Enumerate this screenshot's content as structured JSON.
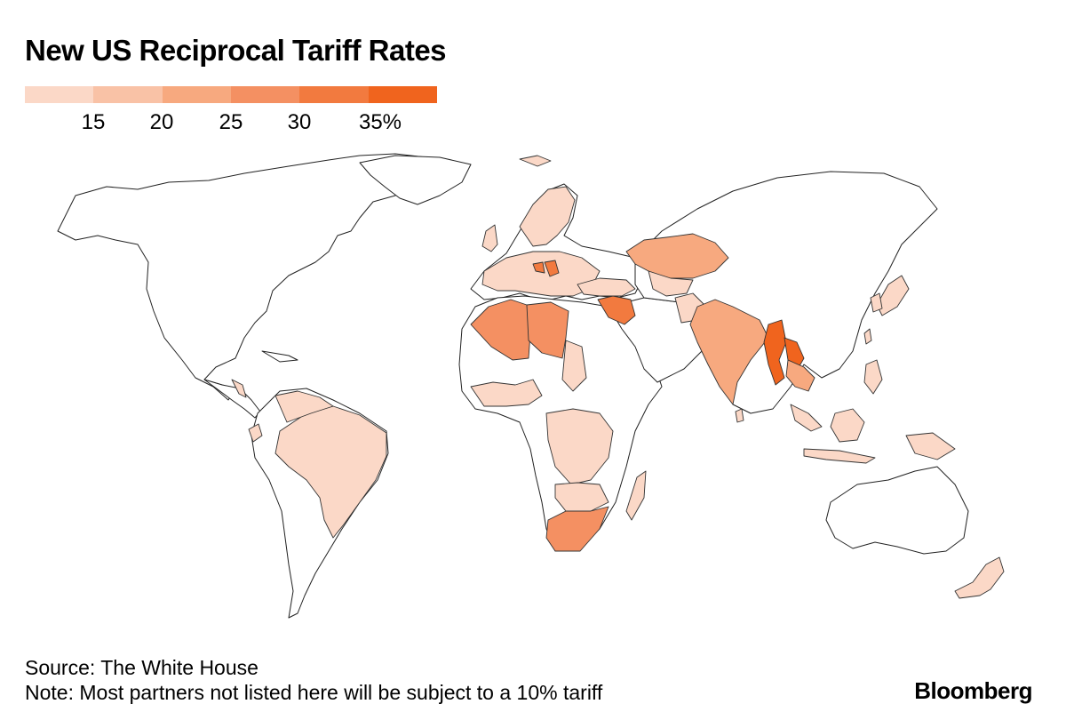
{
  "title": "New US Reciprocal Tariff Rates",
  "legend": {
    "colors": [
      "#fbd8c7",
      "#f9c2a6",
      "#f7a97f",
      "#f49062",
      "#f27a3f",
      "#f0641e"
    ],
    "labels": [
      "15",
      "20",
      "25",
      "30",
      "35%"
    ]
  },
  "footer": {
    "source": "Source: The White House",
    "note": "Note: Most partners not listed here will be subject to a 10% tariff",
    "brand": "Bloomberg"
  }
}
